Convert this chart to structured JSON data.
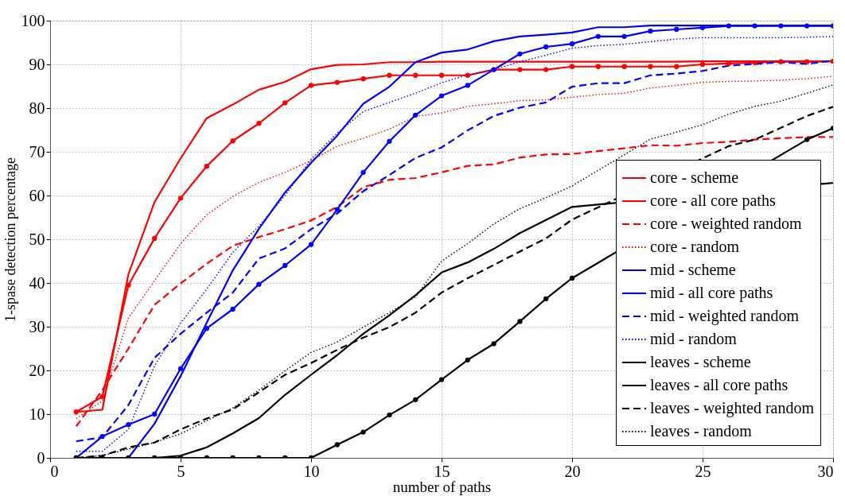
{
  "chart_data": {
    "type": "line",
    "xlabel": "number of paths",
    "ylabel": "1-spase detection percentage",
    "xlim": [
      0,
      30
    ],
    "xticks": [
      0,
      5,
      10,
      15,
      20,
      25,
      30
    ],
    "ylim": [
      0,
      100
    ],
    "yticks": [
      0,
      10,
      20,
      30,
      40,
      50,
      60,
      70,
      80,
      90,
      100
    ],
    "grid": true,
    "legend": "bottom right",
    "x": [
      1,
      2,
      3,
      4,
      5,
      6,
      7,
      8,
      9,
      10,
      11,
      12,
      13,
      14,
      15,
      16,
      17,
      18,
      19,
      20,
      21,
      22,
      23,
      24,
      25,
      26,
      27,
      28,
      29,
      30
    ],
    "series": [
      {
        "name": "core - scheme",
        "color": "#ff0000",
        "line_style": "solid",
        "marker": "none",
        "values": [
          10.5,
          11,
          42,
          58.5,
          68.5,
          77.7,
          80.8,
          84.2,
          86,
          88.9,
          89.9,
          90,
          90.5,
          90.5,
          90.6,
          90.6,
          90.6,
          90.6,
          90.6,
          90.6,
          90.6,
          90.6,
          90.6,
          90.6,
          90.7,
          90.7,
          90.7,
          90.7,
          90.7,
          90.7
        ]
      },
      {
        "name": "core - all core paths",
        "color": "#ff0000",
        "line_style": "solid",
        "marker": "circle",
        "values": [
          10.5,
          14,
          39.5,
          50.2,
          59.4,
          66.7,
          72.5,
          76.5,
          81.2,
          85.2,
          85.9,
          86.7,
          87.5,
          87.5,
          87.5,
          87.5,
          88.8,
          88.8,
          88.8,
          89.5,
          89.5,
          89.5,
          89.5,
          89.5,
          90.0,
          90.2,
          90.4,
          90.6,
          90.6,
          90.7
        ]
      },
      {
        "name": "core - weighted random",
        "color": "#ff0000",
        "line_style": "dashed",
        "marker": "none",
        "values": [
          7.2,
          15.5,
          25,
          35,
          39.9,
          44.4,
          48.5,
          50.5,
          52.3,
          54.3,
          57.4,
          61.9,
          63.6,
          64,
          65.3,
          66.8,
          67.1,
          68.7,
          69.4,
          69.5,
          null,
          null,
          71.5,
          71.4,
          72,
          72.3,
          72.8,
          73.1,
          73.4,
          73.4
        ]
      },
      {
        "name": "core - random",
        "color": "#ff0000",
        "line_style": "dotted",
        "marker": "none",
        "values": [
          9,
          13,
          32,
          40.5,
          49,
          55.6,
          59.8,
          63,
          65.3,
          68,
          71.3,
          73.1,
          75.2,
          78.1,
          78.9,
          80.4,
          81,
          81.7,
          81.9,
          82.5,
          83.1,
          83.4,
          84.6,
          85.2,
          85.9,
          86.1,
          86.2,
          86.4,
          86.7,
          87.3
        ]
      },
      {
        "name": "mid - scheme",
        "color": "#0000ff",
        "line_style": "solid",
        "marker": "none",
        "values": [
          0,
          0,
          0,
          7.8,
          18.7,
          30.9,
          42.9,
          52.4,
          60.7,
          67.5,
          73.7,
          81,
          84.9,
          90.5,
          92.7,
          93.4,
          95.3,
          96.4,
          96.8,
          97.3,
          98.5,
          98.5,
          98.9,
          98.9,
          98.9,
          98.9,
          98.9,
          98.9,
          98.9,
          98.9
        ]
      },
      {
        "name": "mid - all core paths",
        "color": "#0000ff",
        "line_style": "solid",
        "marker": "circle",
        "values": [
          0,
          4.9,
          7.6,
          10,
          20.4,
          29.6,
          34,
          39.7,
          44,
          48.8,
          56.8,
          65.3,
          72.4,
          78.4,
          82.8,
          85.2,
          88.8,
          92.4,
          94,
          94.7,
          96.4,
          96.4,
          97.6,
          98,
          98.4,
          98.8,
          98.8,
          98.8,
          98.8,
          98.8
        ]
      },
      {
        "name": "mid - weighted random",
        "color": "#0000ff",
        "line_style": "dashed",
        "marker": "none",
        "values": [
          3.8,
          4.7,
          12.1,
          22.9,
          28.4,
          33.2,
          37.8,
          45.6,
          47.9,
          52.3,
          55.9,
          61,
          64.7,
          68.6,
          71,
          74.9,
          78.2,
          80.1,
          81.3,
          84.9,
          85.7,
          85.7,
          87.5,
          87.9,
          88.5,
          89.7,
          90.1,
          90.5,
          90.1,
          90.9
        ]
      },
      {
        "name": "mid - random",
        "color": "#0000ff",
        "line_style": "dotted",
        "marker": "none",
        "values": [
          1.5,
          1.5,
          6.5,
          21,
          30.8,
          38.6,
          47,
          53,
          60,
          68.3,
          74.3,
          79.2,
          81.3,
          83.4,
          85.8,
          87.6,
          88.8,
          90.6,
          92.1,
          93.7,
          94.3,
          94.6,
          95.2,
          95.8,
          96.1,
          96.1,
          96.1,
          96.1,
          96.2,
          96.4
        ]
      },
      {
        "name": "leaves - scheme",
        "color": "#000000",
        "line_style": "solid",
        "marker": "none",
        "values": [
          0,
          0,
          0,
          0,
          0.5,
          2.4,
          5.6,
          9.1,
          14.4,
          19,
          23.5,
          28.4,
          32.6,
          37.2,
          42.4,
          44.7,
          47.8,
          51.4,
          54.4,
          57.4,
          null,
          null,
          null,
          null,
          null,
          null,
          null,
          null,
          null,
          62.9
        ]
      },
      {
        "name": "leaves - all core paths",
        "color": "#000000",
        "line_style": "solid",
        "marker": "circle",
        "values": [
          0,
          0,
          0,
          0,
          0,
          0,
          0,
          0,
          0,
          0,
          3,
          5.9,
          9.8,
          13.3,
          17.9,
          22.4,
          26.1,
          31.2,
          36.4,
          41.1,
          null,
          null,
          null,
          null,
          null,
          null,
          null,
          null,
          72.8,
          75.4
        ]
      },
      {
        "name": "leaves - weighted random",
        "color": "#000000",
        "line_style": "dashed",
        "marker": "none",
        "values": [
          0,
          0.5,
          2.4,
          3.5,
          6.5,
          9,
          11.1,
          15,
          19,
          21.7,
          24.7,
          27.5,
          29.9,
          33.2,
          37.8,
          41.1,
          44.1,
          47.2,
          50.2,
          54.5,
          null,
          null,
          null,
          null,
          null,
          71.3,
          72.8,
          75.5,
          78.2,
          80.3
        ]
      },
      {
        "name": "leaves - random",
        "color": "#000000",
        "line_style": "dotted",
        "marker": "none",
        "values": [
          0,
          0.5,
          2,
          3.5,
          5.5,
          8.5,
          11.4,
          15.5,
          19.9,
          24.1,
          26.5,
          29.9,
          33.2,
          36.8,
          45,
          49,
          53.5,
          57,
          59.5,
          62.2,
          null,
          null,
          72.9,
          74.5,
          76.2,
          78.6,
          80.4,
          81.6,
          83.4,
          85.3
        ]
      }
    ]
  }
}
